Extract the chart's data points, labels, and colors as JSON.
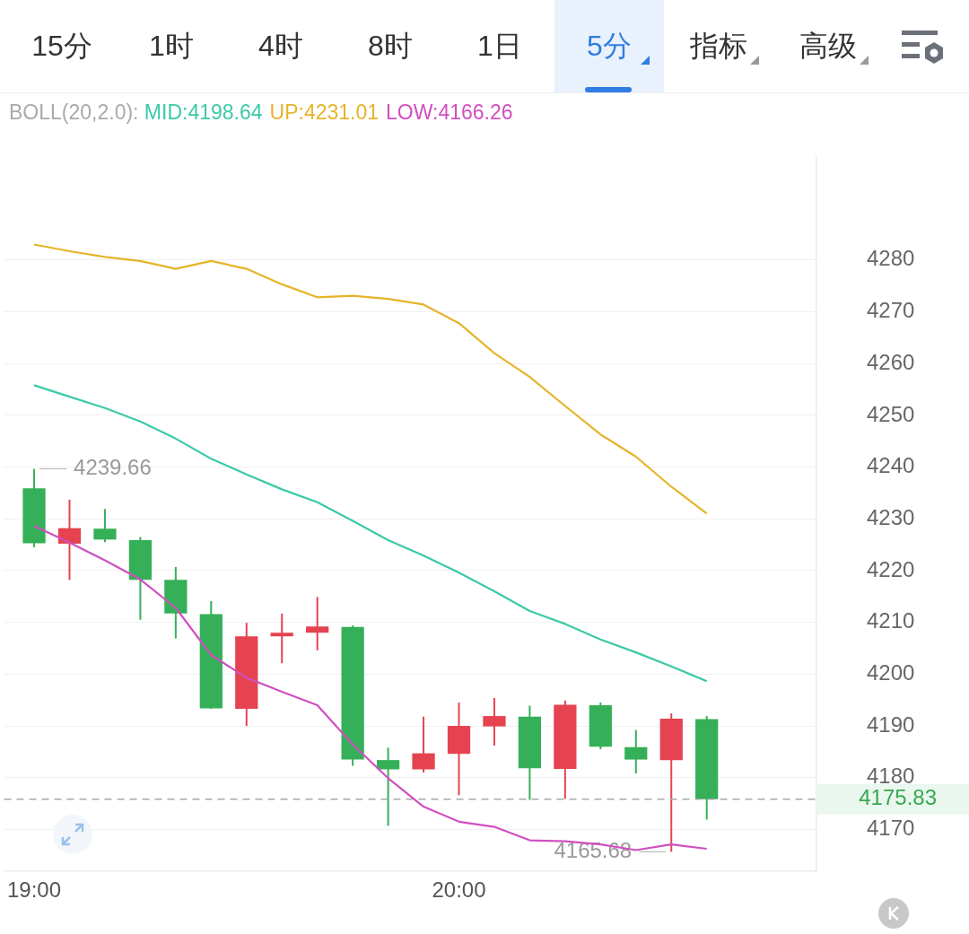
{
  "chart_data": {
    "type": "candlestick",
    "legend_title": "BOLL(20,2.0):",
    "legend": "top",
    "categories": [
      "19:00",
      null,
      null,
      null,
      null,
      null,
      null,
      null,
      null,
      null,
      null,
      null,
      "20:00",
      null,
      null,
      null,
      null,
      null,
      null,
      null
    ],
    "ohlc": [
      [
        4235.9,
        4239.66,
        4224.5,
        4225.3
      ],
      [
        4225.2,
        4233.7,
        4218.2,
        4228.2
      ],
      [
        4228.1,
        4231.9,
        4225.5,
        4226.0
      ],
      [
        4225.9,
        4226.5,
        4210.5,
        4218.2
      ],
      [
        4218.2,
        4220.7,
        4206.9,
        4211.7
      ],
      [
        4211.6,
        4214.1,
        4193.3,
        4193.4
      ],
      [
        4193.3,
        4209.9,
        4190.0,
        4207.3
      ],
      [
        4207.3,
        4211.7,
        4202.1,
        4208.0
      ],
      [
        4208.0,
        4214.9,
        4204.6,
        4209.2
      ],
      [
        4209.1,
        4209.4,
        4182.3,
        4183.5
      ],
      [
        4183.4,
        4185.8,
        4170.7,
        4181.6
      ],
      [
        4181.6,
        4191.8,
        4181.0,
        4184.7
      ],
      [
        4184.6,
        4194.5,
        4176.6,
        4190.0
      ],
      [
        4189.9,
        4195.4,
        4186.2,
        4191.9
      ],
      [
        4191.8,
        4193.9,
        4175.7,
        4181.8
      ],
      [
        4181.7,
        4194.9,
        4175.9,
        4194.1
      ],
      [
        4194.0,
        4194.5,
        4185.5,
        4186.0
      ],
      [
        4185.9,
        4189.2,
        4180.8,
        4183.5
      ],
      [
        4183.4,
        4192.4,
        4165.68,
        4191.4
      ],
      [
        4191.3,
        4191.9,
        4171.9,
        4175.83
      ]
    ],
    "colors": [
      "#35b058",
      "#e5434f",
      "#35b058",
      "#35b058",
      "#35b058",
      "#35b058",
      "#e5434f",
      "#e5434f",
      "#e5434f",
      "#35b058",
      "#35b058",
      "#e5434f",
      "#e5434f",
      "#e5434f",
      "#35b058",
      "#e5434f",
      "#35b058",
      "#35b058",
      "#e5434f",
      "#35b058"
    ],
    "series": [
      {
        "type": "line",
        "name": "MID:4198.64",
        "color": "#3cc9a8",
        "values": [
          4255.8,
          4253.6,
          4251.4,
          4248.8,
          4245.5,
          4241.6,
          4238.6,
          4235.7,
          4233.2,
          4229.6,
          4225.9,
          4222.9,
          4219.6,
          4216.0,
          4212.2,
          4209.7,
          4206.7,
          4204.2,
          4201.5,
          4198.64
        ]
      },
      {
        "type": "line",
        "name": "UP:4231.01",
        "color": "#e6b42a",
        "values": [
          4283.0,
          4281.7,
          4280.6,
          4279.8,
          4278.3,
          4279.8,
          4278.3,
          4275.3,
          4272.8,
          4273.1,
          4272.5,
          4271.4,
          4267.8,
          4262.0,
          4257.4,
          4251.8,
          4246.3,
          4242.0,
          4236.2,
          4231.01
        ]
      },
      {
        "type": "line",
        "name": "LOW:4166.26",
        "color": "#d14fc0",
        "values": [
          4228.6,
          4225.4,
          4222.0,
          4218.3,
          4212.8,
          4203.7,
          4199.3,
          4196.6,
          4194.0,
          4186.4,
          4179.9,
          4174.4,
          4171.5,
          4170.5,
          4167.9,
          4167.7,
          4167.1,
          4166.0,
          4167.1,
          4166.26
        ]
      }
    ],
    "marker": "none",
    "ylim": [
      4162,
      4300
    ],
    "yticks": [
      4170,
      4180,
      4190,
      4200,
      4210,
      4220,
      4230,
      4240,
      4250,
      4260,
      4270,
      4280
    ],
    "grid": "y",
    "ref_lines": [
      {
        "axis": "y",
        "value": 4175.83,
        "label": "4175.83",
        "color": "#a8a8a8",
        "line_style": "dashed"
      }
    ],
    "annotations": [
      "15分",
      "1时",
      "4时",
      "8时",
      "1日",
      "5分",
      "指标",
      "高级",
      "4239.66",
      "4165.68"
    ]
  }
}
